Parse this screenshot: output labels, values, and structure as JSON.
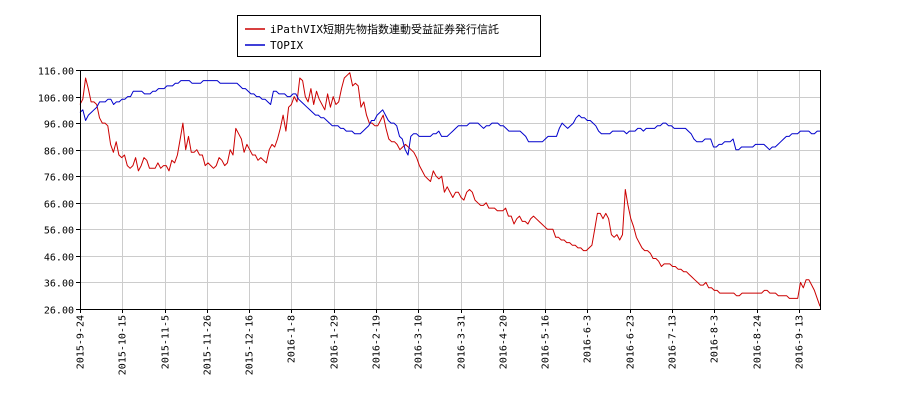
{
  "chart_data": {
    "type": "line",
    "title": "",
    "xlabel": "",
    "ylabel": "",
    "ylim": [
      26.0,
      116.0
    ],
    "yticks": [
      "26.00",
      "36.00",
      "46.00",
      "56.00",
      "66.00",
      "76.00",
      "86.00",
      "96.00",
      "106.00",
      "116.00"
    ],
    "xticks": [
      "2015-9-24",
      "2015-10-15",
      "2015-11-5",
      "2015-11-26",
      "2015-12-16",
      "2016-1-8",
      "2016-1-29",
      "2016-2-19",
      "2016-3-10",
      "2016-3-31",
      "2016-4-20",
      "2016-5-16",
      "2016-6-3",
      "2016-6-23",
      "2016-7-13",
      "2016-8-3",
      "2016-8-24",
      "2016-9-13"
    ],
    "grid": true,
    "legend_position": "top-center",
    "series": [
      {
        "name": "iPathVIX短期先物指数連動受益証券発行信託",
        "color": "#cc0000",
        "values": [
          103,
          105,
          113,
          109,
          104,
          104,
          103,
          98,
          96,
          96,
          95,
          88,
          85,
          89,
          84,
          83,
          84,
          80,
          79,
          80,
          83,
          78,
          80,
          83,
          82,
          79,
          79,
          79,
          81,
          79,
          80,
          80,
          78,
          82,
          81,
          84,
          90,
          96,
          86,
          91,
          85,
          85,
          86,
          84,
          84,
          80,
          81,
          80,
          79,
          80,
          83,
          82,
          80,
          81,
          86,
          84,
          94,
          92,
          90,
          85,
          88,
          86,
          84,
          84,
          82,
          83,
          82,
          81,
          86,
          88,
          87,
          90,
          94,
          99,
          93,
          102,
          103,
          106,
          104,
          113,
          112,
          106,
          104,
          109,
          103,
          108,
          105,
          103,
          101,
          107,
          102,
          106,
          103,
          104,
          109,
          113,
          114,
          115,
          110,
          111,
          110,
          102,
          104,
          99,
          96,
          96,
          95,
          95,
          97,
          99,
          94,
          90,
          89,
          89,
          88,
          86,
          87,
          88,
          87,
          86,
          85,
          83,
          80,
          78,
          76,
          75,
          74,
          78,
          76,
          75,
          76,
          70,
          72,
          70,
          68,
          70,
          70,
          68,
          67,
          70,
          71,
          70,
          67,
          66,
          65,
          65,
          66,
          64,
          64,
          64,
          63,
          63,
          63,
          64,
          61,
          61,
          58,
          60,
          61,
          59,
          59,
          58,
          60,
          61,
          60,
          59,
          58,
          57,
          56,
          56,
          56,
          53,
          53,
          52,
          52,
          51,
          51,
          50,
          50,
          49,
          49,
          48,
          48,
          49,
          50,
          56,
          62,
          62,
          60,
          62,
          60,
          54,
          53,
          54,
          52,
          54,
          71,
          65,
          60,
          57,
          53,
          51,
          49,
          48,
          48,
          47,
          45,
          45,
          44,
          42,
          43,
          43,
          43,
          42,
          42,
          41,
          41,
          40,
          40,
          39,
          38,
          37,
          36,
          35,
          35,
          36,
          34,
          34,
          33,
          33,
          32,
          32,
          32,
          32,
          32,
          32,
          31,
          31,
          32,
          32,
          32,
          32,
          32,
          32,
          32,
          32,
          33,
          33,
          32,
          32,
          32,
          31,
          31,
          31,
          31,
          30,
          30,
          30,
          30,
          36,
          34,
          37,
          37,
          35,
          33,
          30,
          27
        ]
      },
      {
        "name": "TOPIX",
        "color": "#0000cc",
        "values": [
          100,
          101,
          97,
          99,
          100,
          101,
          102,
          104,
          104,
          104,
          105,
          105,
          103,
          104,
          104,
          105,
          105,
          106,
          106,
          108,
          108,
          108,
          108,
          107,
          107,
          107,
          108,
          108,
          109,
          109,
          109,
          110,
          110,
          110,
          111,
          111,
          112,
          112,
          112,
          112,
          111,
          111,
          111,
          111,
          112,
          112,
          112,
          112,
          112,
          112,
          111,
          111,
          111,
          111,
          111,
          111,
          111,
          110,
          109,
          109,
          108,
          107,
          107,
          106,
          106,
          105,
          105,
          104,
          103,
          108,
          108,
          107,
          107,
          107,
          106,
          106,
          107,
          107,
          105,
          104,
          103,
          102,
          101,
          100,
          99,
          99,
          98,
          98,
          97,
          96,
          95,
          95,
          95,
          94,
          94,
          93,
          93,
          93,
          92,
          92,
          92,
          93,
          94,
          95,
          97,
          97,
          99,
          100,
          101,
          99,
          97,
          96,
          96,
          95,
          91,
          90,
          86,
          84,
          91,
          92,
          92,
          91,
          91,
          91,
          91,
          91,
          92,
          92,
          93,
          91,
          91,
          91,
          92,
          93,
          94,
          95,
          95,
          95,
          95,
          96,
          96,
          96,
          96,
          95,
          94,
          95,
          95,
          96,
          96,
          96,
          95,
          95,
          94,
          93,
          93,
          93,
          93,
          93,
          92,
          91,
          89,
          89,
          89,
          89,
          89,
          89,
          90,
          91,
          91,
          91,
          91,
          94,
          96,
          95,
          94,
          95,
          96,
          98,
          99,
          98,
          98,
          97,
          97,
          96,
          95,
          93,
          92,
          92,
          92,
          92,
          93,
          93,
          93,
          93,
          93,
          92,
          93,
          93,
          93,
          94,
          94,
          93,
          94,
          94,
          94,
          94,
          95,
          95,
          96,
          96,
          95,
          95,
          94,
          94,
          94,
          94,
          94,
          93,
          92,
          90,
          89,
          89,
          89,
          90,
          90,
          90,
          87,
          87,
          88,
          88,
          89,
          89,
          89,
          90,
          86,
          86,
          87,
          87,
          87,
          87,
          87,
          88,
          88,
          88,
          88,
          87,
          86,
          87,
          87,
          88,
          89,
          90,
          91,
          91,
          92,
          92,
          92,
          93,
          93,
          93,
          93,
          92,
          92,
          93,
          93
        ]
      }
    ]
  }
}
